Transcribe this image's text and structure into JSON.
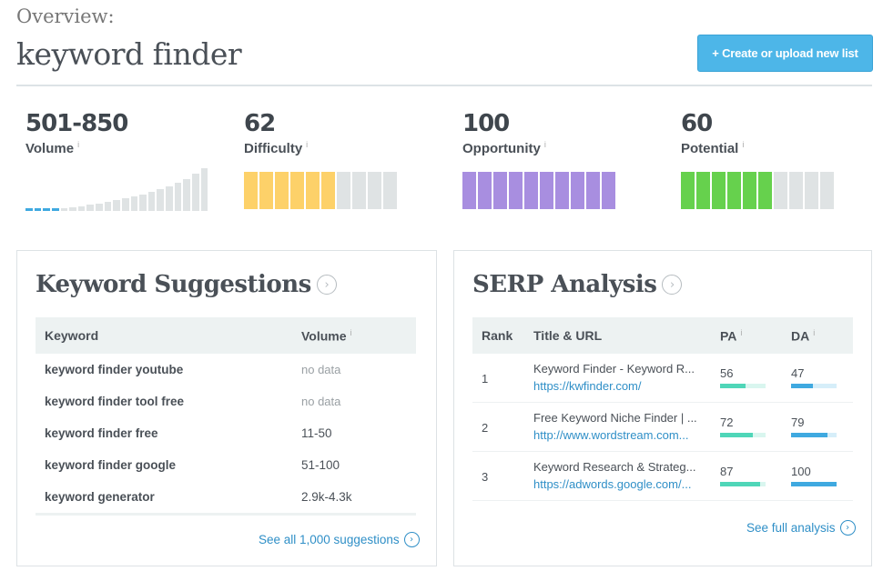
{
  "header": {
    "overview_label": "Overview:",
    "title": "keyword finder",
    "create_button": "+ Create or upload new list"
  },
  "metrics": {
    "volume": {
      "value": "501-850",
      "label": "Volume",
      "bar_levels": [
        0.05,
        0.05,
        0.05,
        0.05,
        0.05,
        0.08,
        0.1,
        0.13,
        0.16,
        0.2,
        0.23,
        0.27,
        0.3,
        0.35,
        0.4,
        0.46,
        0.52,
        0.6,
        0.68,
        0.78,
        0.9
      ],
      "highlighted_bars": 4
    },
    "difficulty": {
      "value": "62",
      "label": "Difficulty",
      "filled_segments": 6,
      "total_segments": 10,
      "color": "#fdd169"
    },
    "opportunity": {
      "value": "100",
      "label": "Opportunity",
      "filled_segments": 10,
      "total_segments": 10,
      "color": "#a88ee0"
    },
    "potential": {
      "value": "60",
      "label": "Potential",
      "filled_segments": 6,
      "total_segments": 10,
      "color": "#66d14d"
    }
  },
  "info_glyph": "i",
  "keyword_suggestions": {
    "title": "Keyword Suggestions",
    "col_keyword": "Keyword",
    "col_volume": "Volume",
    "rows": [
      {
        "keyword": "keyword finder youtube",
        "volume": "no data"
      },
      {
        "keyword": "keyword finder tool free",
        "volume": "no data"
      },
      {
        "keyword": "keyword finder free",
        "volume": "11-50"
      },
      {
        "keyword": "keyword finder google",
        "volume": "51-100"
      },
      {
        "keyword": "keyword generator",
        "volume": "2.9k-4.3k"
      }
    ],
    "see_all": "See all 1,000 suggestions"
  },
  "serp_analysis": {
    "title": "SERP Analysis",
    "col_rank": "Rank",
    "col_title": "Title & URL",
    "col_pa": "PA",
    "col_da": "DA",
    "rows": [
      {
        "rank": "1",
        "title": "Keyword Finder - Keyword R...",
        "url": "https://kwfinder.com/",
        "pa": "56",
        "da": "47",
        "pa_level": 0.56,
        "da_level": 0.47
      },
      {
        "rank": "2",
        "title": "Free Keyword Niche Finder | ...",
        "url": "http://www.wordstream.com...",
        "pa": "72",
        "da": "79",
        "pa_level": 0.72,
        "da_level": 0.79
      },
      {
        "rank": "3",
        "title": "Keyword Research & Strateg...",
        "url": "https://adwords.google.com/...",
        "pa": "87",
        "da": "100",
        "pa_level": 0.87,
        "da_level": 1.0
      }
    ],
    "see_full": "See full analysis"
  },
  "colors": {
    "accent": "#4db6e8",
    "link": "#2f8fc7",
    "pa_bar": "#4fd6b8",
    "pa_track": "#d9f6ef",
    "da_bar": "#3fa9e0",
    "da_track": "#d6eef9",
    "segment_empty": "#dfe3e4"
  }
}
